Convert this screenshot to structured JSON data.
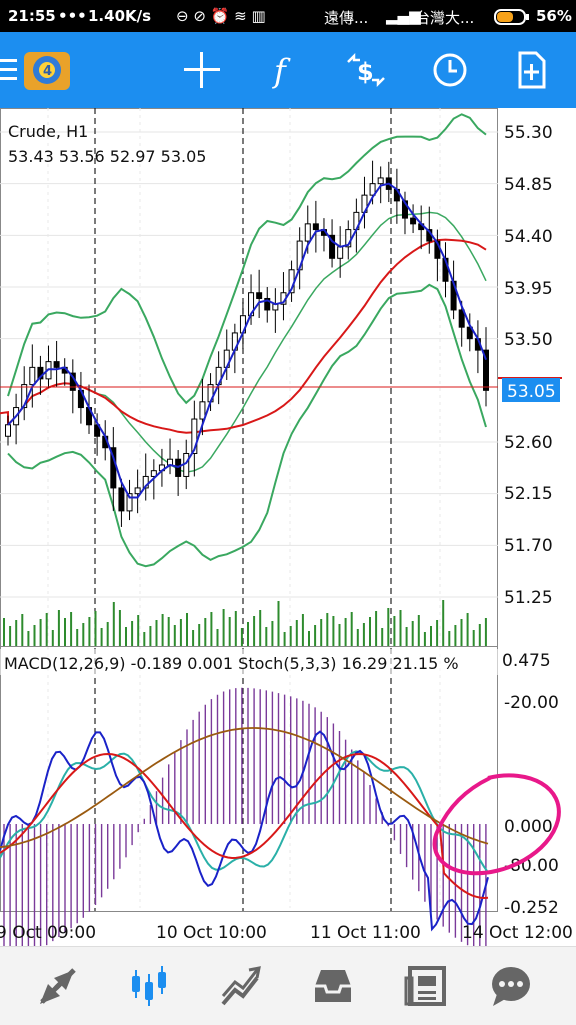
{
  "status_bar": {
    "time": "21:55",
    "net_speed": "1.40K/s",
    "carrier1": "遠傳...",
    "carrier2": "台灣大...",
    "battery": "56%"
  },
  "toolbar": {
    "buttons": [
      {
        "name": "menu-button",
        "icon": "menu-icon"
      },
      {
        "name": "app-logo",
        "icon": "mt4-logo-icon"
      },
      {
        "name": "crosshair-button",
        "icon": "crosshair-icon"
      },
      {
        "name": "indicators-button",
        "icon": "function-icon"
      },
      {
        "name": "symbol-button",
        "icon": "dollar-arrows-icon"
      },
      {
        "name": "timeframe-button",
        "icon": "clock-icon"
      },
      {
        "name": "add-object-button",
        "icon": "new-document-icon"
      }
    ]
  },
  "chart": {
    "symbol_title": "Crude, H1",
    "ohlc": "53.43 53.56 52.97 53.05",
    "price_labels": [
      "55.30",
      "54.85",
      "54.40",
      "53.95",
      "53.50",
      "52.60",
      "52.15",
      "51.70",
      "51.25"
    ],
    "current_price": "53.05",
    "indicator_label": "MACD(12,26,9) -0.189 0.001 Stoch(5,3,3) 16.29 21.15 %",
    "sub_labels": [
      "0.475",
      "-20.00",
      "0.000",
      "-80.00",
      "-0.252"
    ],
    "time_labels": [
      "9 Oct 09:00",
      "10 Oct 10:00",
      "11 Oct 11:00",
      "14 Oct 12:00"
    ],
    "colors": {
      "candles": "#000000",
      "fast_ma": "#1a22c8",
      "slow_ma": "#d81818",
      "bollinger": "#3aa860",
      "volume": "#2e8b2e",
      "macd_hist": "#7a3a9a",
      "macd_signal": "#9a5a10",
      "stoch_main": "#1a22c8",
      "stoch_signal": "#2ab0a8",
      "stoch_slow": "#d81818",
      "current_price_bg": "#1c8ef0",
      "annotation": "#e8188a"
    }
  },
  "chart_data": {
    "type": "candlestick",
    "title": "Crude, H1",
    "ylim": [
      51.0,
      55.5
    ],
    "ohlc_last": {
      "open": 53.43,
      "high": 53.56,
      "low": 52.97,
      "close": 53.05
    },
    "current_price": 53.05,
    "y_ticks": [
      55.3,
      54.85,
      54.4,
      53.95,
      53.5,
      52.6,
      52.15,
      51.7,
      51.25
    ],
    "x_ticks": [
      "9 Oct 09:00",
      "10 Oct 10:00",
      "11 Oct 11:00",
      "14 Oct 12:00"
    ],
    "closes": [
      52.75,
      52.9,
      53.1,
      53.25,
      53.15,
      53.3,
      53.25,
      53.2,
      53.05,
      52.9,
      52.75,
      52.65,
      52.55,
      52.2,
      52.0,
      52.15,
      52.2,
      52.3,
      52.35,
      52.4,
      52.45,
      52.3,
      52.5,
      52.8,
      52.95,
      53.1,
      53.25,
      53.4,
      53.55,
      53.7,
      53.9,
      53.85,
      53.75,
      53.8,
      53.9,
      54.1,
      54.35,
      54.5,
      54.45,
      54.4,
      54.2,
      54.3,
      54.45,
      54.6,
      54.75,
      54.85,
      54.9,
      54.8,
      54.7,
      54.55,
      54.5,
      54.45,
      54.35,
      54.2,
      54.0,
      53.75,
      53.6,
      53.5,
      53.4,
      53.05
    ],
    "indicators": {
      "macd": {
        "params": "12,26,9",
        "value": -0.189,
        "signal": 0.001
      },
      "stochastic": {
        "params": "5,3,3",
        "main": 16.29,
        "signal": 21.15
      }
    }
  },
  "bottom_nav": {
    "items": [
      {
        "name": "nav-quotes",
        "icon": "arrows-icon"
      },
      {
        "name": "nav-chart",
        "icon": "candlestick-icon",
        "active": true
      },
      {
        "name": "nav-trade",
        "icon": "trend-icon"
      },
      {
        "name": "nav-history",
        "icon": "inbox-icon"
      },
      {
        "name": "nav-news",
        "icon": "newspaper-icon"
      },
      {
        "name": "nav-chat",
        "icon": "chat-icon"
      }
    ]
  }
}
